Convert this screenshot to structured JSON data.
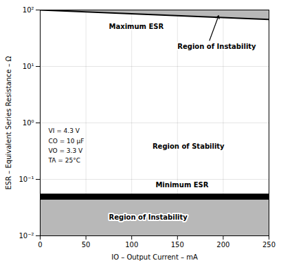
{
  "chart_data": {
    "type": "area",
    "log": "y",
    "xlabel": "IO – Output Current – mA",
    "ylabel": "ESR – Equivalent Series Resistance – Ω",
    "xlim": [
      0,
      250
    ],
    "ylim": [
      0.01,
      100
    ],
    "xticks": [
      0,
      50,
      100,
      150,
      200,
      250
    ],
    "yticks": [
      {
        "value": 0.01,
        "label": "10⁻²"
      },
      {
        "value": 0.1,
        "label": "10⁻¹"
      },
      {
        "value": 1,
        "label": "10⁰"
      },
      {
        "value": 10,
        "label": "10¹"
      },
      {
        "value": 100,
        "label": "10²"
      }
    ],
    "grid": true,
    "max_esr": {
      "x": [
        0,
        250
      ],
      "values": [
        100,
        68
      ],
      "color": "#000000"
    },
    "upper_instability": {
      "top": 100,
      "color": "#b8b8b8"
    },
    "min_esr_band": {
      "x": [
        0,
        250
      ],
      "bottom": 0.043,
      "top": 0.055,
      "color": "#000000"
    },
    "lower_instability": {
      "x": [
        0,
        250
      ],
      "bottom": 0.01,
      "top": 0.043,
      "color": "#b8b8b8"
    },
    "annotations": [
      "Maximum ESR",
      "Region of Instability",
      "Region of Stability",
      "Minimum ESR",
      "Region of Instability"
    ],
    "conditions": [
      "VI = 4.3 V",
      "CO = 10 μF",
      "VO = 3.3 V",
      "TA = 25°C"
    ]
  }
}
